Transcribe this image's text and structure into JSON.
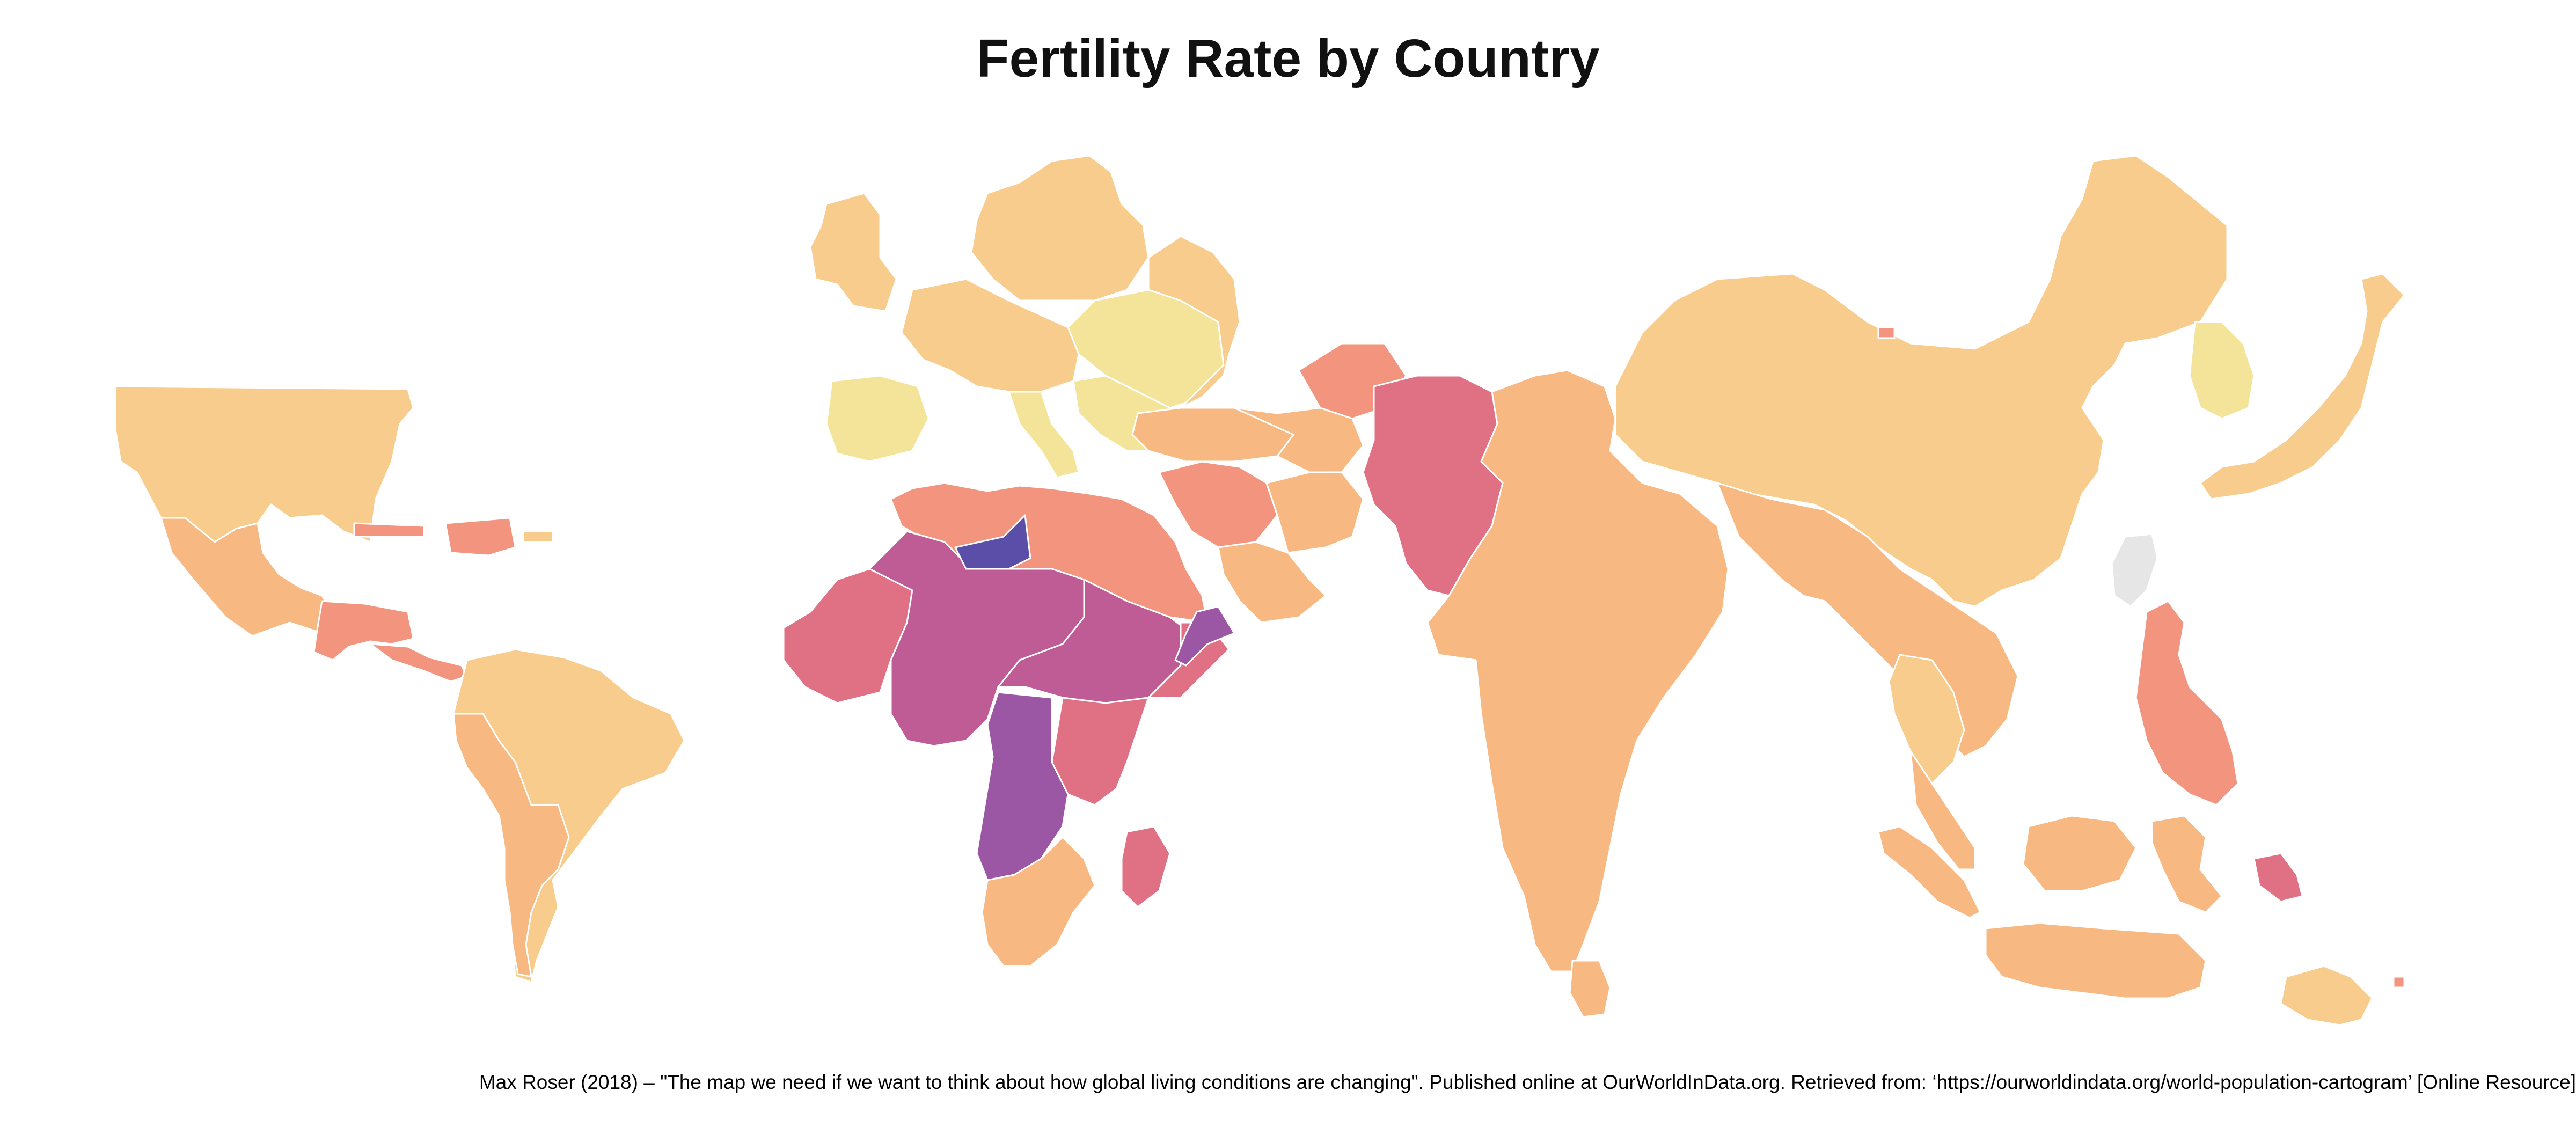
{
  "title": "Fertility Rate by Country",
  "caption": "Max Roser (2018) – \"The map we need if we want to think about how global living conditions are changing\". Published online at OurWorldInData.org. Retrieved from: ‘https://ourworldindata.org/world-population-cartogram’ [Online Resource]",
  "map": {
    "type": "choropleth-cartogram",
    "color_scale": [
      "#f3e49a",
      "#f8cc8c",
      "#f7b882",
      "#f3947f",
      "#e07083",
      "#c05c95",
      "#9b57a3",
      "#5a4ea8"
    ],
    "no_data_color": "#e6e6e6",
    "regions": [
      {
        "name": "north-america",
        "level": 1
      },
      {
        "name": "mexico",
        "level": 2
      },
      {
        "name": "central-america",
        "level": 3
      },
      {
        "name": "caribbean",
        "level": 3
      },
      {
        "name": "south-america",
        "level": 1
      },
      {
        "name": "andes",
        "level": 2
      },
      {
        "name": "uk-ireland",
        "level": 1
      },
      {
        "name": "scandinavia",
        "level": 1
      },
      {
        "name": "western-europe",
        "level": 1
      },
      {
        "name": "iberia",
        "level": 0
      },
      {
        "name": "italy",
        "level": 0
      },
      {
        "name": "eastern-europe",
        "level": 0
      },
      {
        "name": "russia",
        "level": 1
      },
      {
        "name": "turkey",
        "level": 2
      },
      {
        "name": "caucasus",
        "level": 3
      },
      {
        "name": "north-africa",
        "level": 3
      },
      {
        "name": "sahel",
        "level": 5
      },
      {
        "name": "niger",
        "level": 7
      },
      {
        "name": "west-africa",
        "level": 4
      },
      {
        "name": "central-africa",
        "level": 5
      },
      {
        "name": "dr-congo",
        "level": 6
      },
      {
        "name": "east-africa",
        "level": 4
      },
      {
        "name": "somalia",
        "level": 6
      },
      {
        "name": "southern-africa",
        "level": 2
      },
      {
        "name": "madagascar",
        "level": 4
      },
      {
        "name": "middle-east",
        "level": 3
      },
      {
        "name": "arabia",
        "level": 2
      },
      {
        "name": "iran",
        "level": 2
      },
      {
        "name": "afghanistan-pakistan",
        "level": 4
      },
      {
        "name": "central-asia",
        "level": 2
      },
      {
        "name": "india",
        "level": 2
      },
      {
        "name": "sri-lanka",
        "level": 2
      },
      {
        "name": "china",
        "level": 1
      },
      {
        "name": "mongolia",
        "level": 3
      },
      {
        "name": "korea",
        "level": 0
      },
      {
        "name": "japan",
        "level": 1
      },
      {
        "name": "taiwan",
        "level": -1
      },
      {
        "name": "southeast-asia",
        "level": 2
      },
      {
        "name": "thailand",
        "level": 1
      },
      {
        "name": "philippines",
        "level": 3
      },
      {
        "name": "indonesia",
        "level": 2
      },
      {
        "name": "papua-new-guinea",
        "level": 4
      },
      {
        "name": "australia",
        "level": 1
      },
      {
        "name": "pacific-islands",
        "level": 3
      }
    ]
  }
}
